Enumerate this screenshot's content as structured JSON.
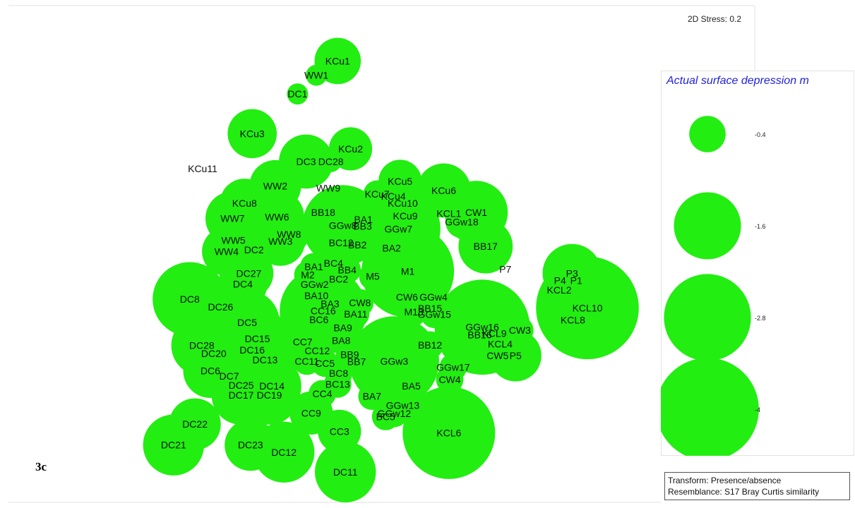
{
  "stress_text": "2D Stress: 0.2",
  "panel_label": "3c",
  "legend": {
    "title": "Actual surface depression m",
    "entries": [
      {
        "label": "-0.4",
        "value": -0.4
      },
      {
        "label": "-1.6",
        "value": -1.6
      },
      {
        "label": "-2.8",
        "value": -2.8
      },
      {
        "label": "-4",
        "value": -4
      }
    ]
  },
  "notes": {
    "transform": "Transform: Presence/absence",
    "resemblance": "Resemblance: S17 Bray Curtis similarity"
  },
  "colors": {
    "bubble": "#22ee11",
    "legend_title": "#2222dd"
  },
  "chart_data": {
    "type": "scatter",
    "subtype": "bubble",
    "title": "",
    "size_variable": "Actual surface depression m",
    "axes_visible": false,
    "points": [
      {
        "label": "KCu1",
        "x": 0.395,
        "y": 0.88,
        "size": -0.7
      },
      {
        "label": "WW1",
        "x": 0.37,
        "y": 0.852,
        "size": -0.1
      },
      {
        "label": "DC1",
        "x": 0.348,
        "y": 0.815,
        "size": -0.1
      },
      {
        "label": "KCu3",
        "x": 0.295,
        "y": 0.737,
        "size": -0.8
      },
      {
        "label": "KCu2",
        "x": 0.41,
        "y": 0.707,
        "size": -0.6
      },
      {
        "label": "DC3",
        "x": 0.358,
        "y": 0.682,
        "size": -1.0
      },
      {
        "label": "DC28",
        "x": 0.387,
        "y": 0.682,
        "size": -0.1
      },
      {
        "label": "KCu11",
        "x": 0.237,
        "y": 0.668,
        "size": 0
      },
      {
        "label": "WW2",
        "x": 0.322,
        "y": 0.634,
        "size": -0.9
      },
      {
        "label": "WW9",
        "x": 0.384,
        "y": 0.63,
        "size": 0
      },
      {
        "label": "KCu5",
        "x": 0.468,
        "y": 0.643,
        "size": -0.6
      },
      {
        "label": "KCu7",
        "x": 0.441,
        "y": 0.618,
        "size": -0.2
      },
      {
        "label": "KCu4",
        "x": 0.46,
        "y": 0.614,
        "size": -0.2
      },
      {
        "label": "KCu10",
        "x": 0.471,
        "y": 0.6,
        "size": -0.2
      },
      {
        "label": "KCu6",
        "x": 0.519,
        "y": 0.625,
        "size": -1.0
      },
      {
        "label": "KCu8",
        "x": 0.286,
        "y": 0.6,
        "size": -0.8
      },
      {
        "label": "WW7",
        "x": 0.272,
        "y": 0.57,
        "size": -1.0
      },
      {
        "label": "WW6",
        "x": 0.324,
        "y": 0.573,
        "size": -1.0
      },
      {
        "label": "BB18",
        "x": 0.378,
        "y": 0.582,
        "size": -0.2
      },
      {
        "label": "BA1",
        "x": 0.425,
        "y": 0.568,
        "size": -0.5
      },
      {
        "label": "KCL1",
        "x": 0.525,
        "y": 0.58,
        "size": 0
      },
      {
        "label": "CW1",
        "x": 0.557,
        "y": 0.582,
        "size": -1.4
      },
      {
        "label": "GGw18",
        "x": 0.54,
        "y": 0.563,
        "size": -0.3
      },
      {
        "label": "KCu9",
        "x": 0.474,
        "y": 0.575,
        "size": -0.2
      },
      {
        "label": "GGw7",
        "x": 0.466,
        "y": 0.549,
        "size": -2.6
      },
      {
        "label": "GGw8",
        "x": 0.401,
        "y": 0.556,
        "size": -2.4
      },
      {
        "label": "BB3",
        "x": 0.424,
        "y": 0.555,
        "size": -0.2
      },
      {
        "label": "WW8",
        "x": 0.338,
        "y": 0.539,
        "size": -0.5
      },
      {
        "label": "WW5",
        "x": 0.273,
        "y": 0.527,
        "size": -0.8
      },
      {
        "label": "WW3",
        "x": 0.328,
        "y": 0.525,
        "size": -0.8
      },
      {
        "label": "WW4",
        "x": 0.265,
        "y": 0.505,
        "size": -0.8
      },
      {
        "label": "DC2",
        "x": 0.297,
        "y": 0.508,
        "size": -0.2
      },
      {
        "label": "BC12",
        "x": 0.399,
        "y": 0.522,
        "size": -0.2
      },
      {
        "label": "BB2",
        "x": 0.418,
        "y": 0.518,
        "size": -0.2
      },
      {
        "label": "BA2",
        "x": 0.458,
        "y": 0.512,
        "size": -0.2
      },
      {
        "label": "BB17",
        "x": 0.568,
        "y": 0.515,
        "size": -1.0
      },
      {
        "label": "P7",
        "x": 0.591,
        "y": 0.47,
        "size": 0
      },
      {
        "label": "P3",
        "x": 0.669,
        "y": 0.462,
        "size": -1.2
      },
      {
        "label": "P4",
        "x": 0.655,
        "y": 0.448,
        "size": -0.2
      },
      {
        "label": "P1",
        "x": 0.674,
        "y": 0.448,
        "size": -0.2
      },
      {
        "label": "KCL2",
        "x": 0.654,
        "y": 0.429,
        "size": -0.2
      },
      {
        "label": "KCL10",
        "x": 0.687,
        "y": 0.394,
        "size": -4.0
      },
      {
        "label": "KCL8",
        "x": 0.67,
        "y": 0.37,
        "size": -0.2
      },
      {
        "label": "DC27",
        "x": 0.291,
        "y": 0.462,
        "size": -0.8
      },
      {
        "label": "DC4",
        "x": 0.284,
        "y": 0.441,
        "size": -0.8
      },
      {
        "label": "BA1",
        "x": 0.367,
        "y": 0.475,
        "size": -0.2
      },
      {
        "label": "BC4",
        "x": 0.39,
        "y": 0.482,
        "size": -0.2
      },
      {
        "label": "BB4",
        "x": 0.406,
        "y": 0.469,
        "size": -0.2
      },
      {
        "label": "M2",
        "x": 0.36,
        "y": 0.459,
        "size": -0.2
      },
      {
        "label": "BC2",
        "x": 0.396,
        "y": 0.451,
        "size": -0.2
      },
      {
        "label": "M5",
        "x": 0.436,
        "y": 0.456,
        "size": -0.2
      },
      {
        "label": "M1",
        "x": 0.477,
        "y": 0.466,
        "size": -3.2
      },
      {
        "label": "GGw2",
        "x": 0.368,
        "y": 0.44,
        "size": -0.2
      },
      {
        "label": "BA10",
        "x": 0.37,
        "y": 0.418,
        "size": -0.2
      },
      {
        "label": "BA3",
        "x": 0.386,
        "y": 0.402,
        "size": -0.2
      },
      {
        "label": "CW8",
        "x": 0.421,
        "y": 0.404,
        "size": -0.2
      },
      {
        "label": "CW6",
        "x": 0.476,
        "y": 0.415,
        "size": -0.2
      },
      {
        "label": "GGw4",
        "x": 0.507,
        "y": 0.415,
        "size": -0.2
      },
      {
        "label": "BB15",
        "x": 0.503,
        "y": 0.393,
        "size": -0.2
      },
      {
        "label": "GGw15",
        "x": 0.508,
        "y": 0.381,
        "size": -0.2
      },
      {
        "label": "DC8",
        "x": 0.222,
        "y": 0.411,
        "size": -2.0
      },
      {
        "label": "DC26",
        "x": 0.258,
        "y": 0.396,
        "size": -0.2
      },
      {
        "label": "CC16",
        "x": 0.378,
        "y": 0.388,
        "size": -2.8
      },
      {
        "label": "BA11",
        "x": 0.416,
        "y": 0.382,
        "size": -0.2
      },
      {
        "label": "BC6",
        "x": 0.373,
        "y": 0.371,
        "size": -0.2
      },
      {
        "label": "M13",
        "x": 0.484,
        "y": 0.386,
        "size": -0.2
      },
      {
        "label": "BA9",
        "x": 0.401,
        "y": 0.355,
        "size": -0.2
      },
      {
        "label": "DC5",
        "x": 0.289,
        "y": 0.365,
        "size": -1.5
      },
      {
        "label": "GGw16",
        "x": 0.564,
        "y": 0.356,
        "size": -3.4
      },
      {
        "label": "KCL9",
        "x": 0.578,
        "y": 0.344,
        "size": -0.2
      },
      {
        "label": "CW3",
        "x": 0.608,
        "y": 0.35,
        "size": -0.2
      },
      {
        "label": "BB16",
        "x": 0.561,
        "y": 0.341,
        "size": -0.2
      },
      {
        "label": "KCL4",
        "x": 0.585,
        "y": 0.323,
        "size": -0.2
      },
      {
        "label": "P5",
        "x": 0.603,
        "y": 0.3,
        "size": -0.9
      },
      {
        "label": "CW5",
        "x": 0.582,
        "y": 0.3,
        "size": -0.2
      },
      {
        "label": "DC15",
        "x": 0.301,
        "y": 0.333,
        "size": -1.4
      },
      {
        "label": "DC28",
        "x": 0.236,
        "y": 0.32,
        "size": -1.3
      },
      {
        "label": "DC16",
        "x": 0.295,
        "y": 0.311,
        "size": -1.3
      },
      {
        "label": "DC20",
        "x": 0.25,
        "y": 0.304,
        "size": -1.3
      },
      {
        "label": "DC13",
        "x": 0.31,
        "y": 0.292,
        "size": -1.3
      },
      {
        "label": "CC7",
        "x": 0.354,
        "y": 0.327,
        "size": -1.0
      },
      {
        "label": "CC12",
        "x": 0.371,
        "y": 0.31,
        "size": -0.2
      },
      {
        "label": "BA8",
        "x": 0.399,
        "y": 0.33,
        "size": -0.2
      },
      {
        "label": "BB12",
        "x": 0.503,
        "y": 0.321,
        "size": -0.2
      },
      {
        "label": "BB9",
        "x": 0.409,
        "y": 0.302,
        "size": -0.2
      },
      {
        "label": "BB7",
        "x": 0.417,
        "y": 0.288,
        "size": -0.2
      },
      {
        "label": "CC11",
        "x": 0.359,
        "y": 0.289,
        "size": -0.2
      },
      {
        "label": "CC5",
        "x": 0.38,
        "y": 0.285,
        "size": -0.2
      },
      {
        "label": "GGw3",
        "x": 0.461,
        "y": 0.289,
        "size": -3.0
      },
      {
        "label": "GGw17",
        "x": 0.53,
        "y": 0.277,
        "size": -0.2
      },
      {
        "label": "DC6",
        "x": 0.246,
        "y": 0.27,
        "size": -1.0
      },
      {
        "label": "DC7",
        "x": 0.268,
        "y": 0.26,
        "size": -1.0
      },
      {
        "label": "BC8",
        "x": 0.396,
        "y": 0.265,
        "size": -0.2
      },
      {
        "label": "CW4",
        "x": 0.526,
        "y": 0.253,
        "size": -0.2
      },
      {
        "label": "DC25",
        "x": 0.282,
        "y": 0.242,
        "size": -1.2
      },
      {
        "label": "DC14",
        "x": 0.318,
        "y": 0.24,
        "size": -1.2
      },
      {
        "label": "DC19",
        "x": 0.315,
        "y": 0.222,
        "size": -1.2
      },
      {
        "label": "DC17",
        "x": 0.282,
        "y": 0.222,
        "size": -1.2
      },
      {
        "label": "BC13",
        "x": 0.395,
        "y": 0.244,
        "size": -0.2
      },
      {
        "label": "BA5",
        "x": 0.481,
        "y": 0.24,
        "size": -0.2
      },
      {
        "label": "CC4",
        "x": 0.377,
        "y": 0.225,
        "size": -0.2
      },
      {
        "label": "BA7",
        "x": 0.435,
        "y": 0.22,
        "size": -0.2
      },
      {
        "label": "GGw13",
        "x": 0.471,
        "y": 0.202,
        "size": -0.2
      },
      {
        "label": "GGw12",
        "x": 0.461,
        "y": 0.186,
        "size": -0.2
      },
      {
        "label": "CC9",
        "x": 0.364,
        "y": 0.187,
        "size": -0.6
      },
      {
        "label": "BC5",
        "x": 0.451,
        "y": 0.18,
        "size": -0.2
      },
      {
        "label": "CC3",
        "x": 0.397,
        "y": 0.151,
        "size": -0.6
      },
      {
        "label": "KCL6",
        "x": 0.525,
        "y": 0.148,
        "size": -3.2
      },
      {
        "label": "DC22",
        "x": 0.228,
        "y": 0.165,
        "size": -0.9
      },
      {
        "label": "DC21",
        "x": 0.203,
        "y": 0.124,
        "size": -1.3
      },
      {
        "label": "DC23",
        "x": 0.293,
        "y": 0.124,
        "size": -0.9
      },
      {
        "label": "DC12",
        "x": 0.332,
        "y": 0.11,
        "size": -1.3
      },
      {
        "label": "DC11",
        "x": 0.404,
        "y": 0.071,
        "size": -1.3
      }
    ]
  }
}
